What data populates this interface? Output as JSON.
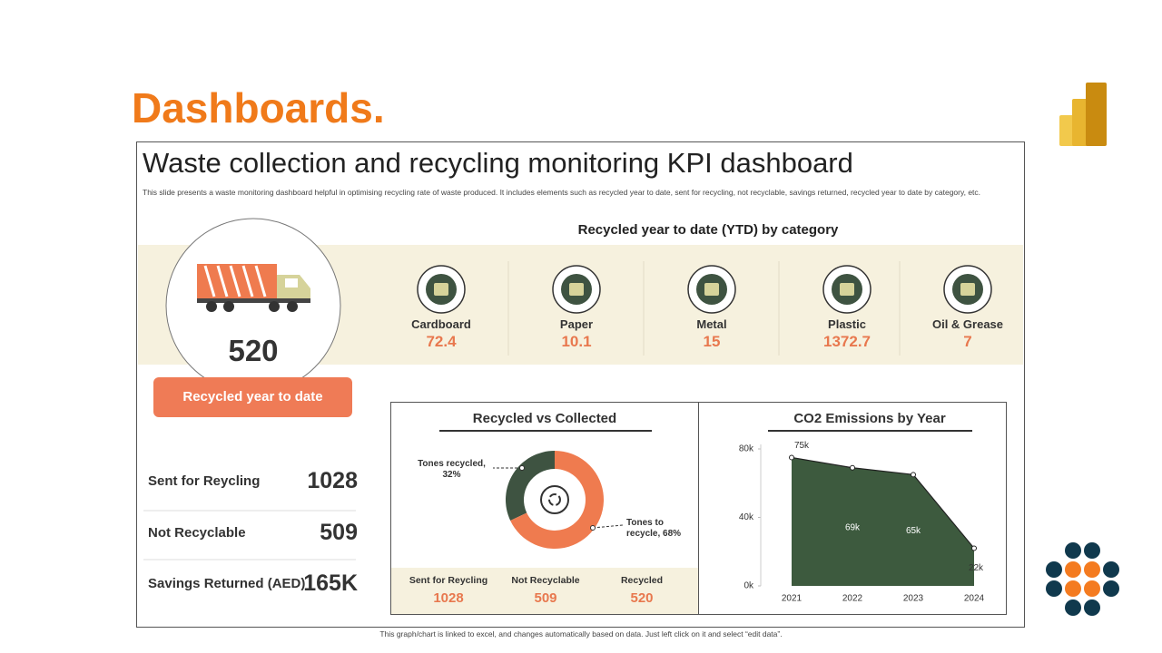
{
  "header": {
    "title": "Dashboards."
  },
  "dashboard": {
    "title": "Waste collection and recycling monitoring KPI dashboard",
    "description": "This slide presents a waste monitoring dashboard helpful in optimising recycling rate of waste produced. It includes elements such as recycled year to date, sent for recycling, not recyclable, savings returned, recycled year to date by category, etc."
  },
  "ytd": {
    "value": 520,
    "label": "Recycled year to date"
  },
  "categories": {
    "title": "Recycled year to date (YTD) by category",
    "items": [
      {
        "label": "Cardboard",
        "value": 72.4
      },
      {
        "label": "Paper",
        "value": 10.1
      },
      {
        "label": "Metal",
        "value": 15
      },
      {
        "label": "Plastic",
        "value": 1372.7
      },
      {
        "label": "Oil & Grease",
        "value": 7
      }
    ]
  },
  "stats": [
    {
      "label": "Sent for Reycling",
      "value": 1028
    },
    {
      "label": "Not Recyclable",
      "value": 509
    },
    {
      "label": "Savings Returned (AED)",
      "value": "165K"
    }
  ],
  "chart_data": [
    {
      "type": "pie",
      "title": "Recycled vs Collected",
      "values": [
        32,
        68
      ],
      "value_labels": [
        "Tones recycled, 32%",
        "Tones to recycle, 68%"
      ],
      "colors": [
        "#3e5341",
        "#ef7b4f"
      ]
    },
    {
      "type": "area",
      "title": "CO2 Emissions by Year",
      "categories": [
        "2021",
        "2022",
        "2023",
        "2024"
      ],
      "values": [
        75000,
        69000,
        65000,
        22000
      ],
      "value_labels": [
        "75k",
        "69k",
        "65k",
        "22k"
      ],
      "color": "#3d5a3e",
      "ylim": [
        0,
        80000
      ],
      "yticks": [
        {
          "value": 0,
          "label": "0k"
        },
        {
          "value": 40000,
          "label": "40k"
        },
        {
          "value": 80000,
          "label": "80k"
        }
      ]
    }
  ],
  "summary": [
    {
      "label": "Sent for Reycling",
      "value": 1028
    },
    {
      "label": "Not Recyclable",
      "value": 509
    },
    {
      "label": "Recycled",
      "value": 520
    }
  ],
  "footnote": "This graph/chart is linked to excel, and changes automatically based on data. Just left click on it and select “edit data”."
}
